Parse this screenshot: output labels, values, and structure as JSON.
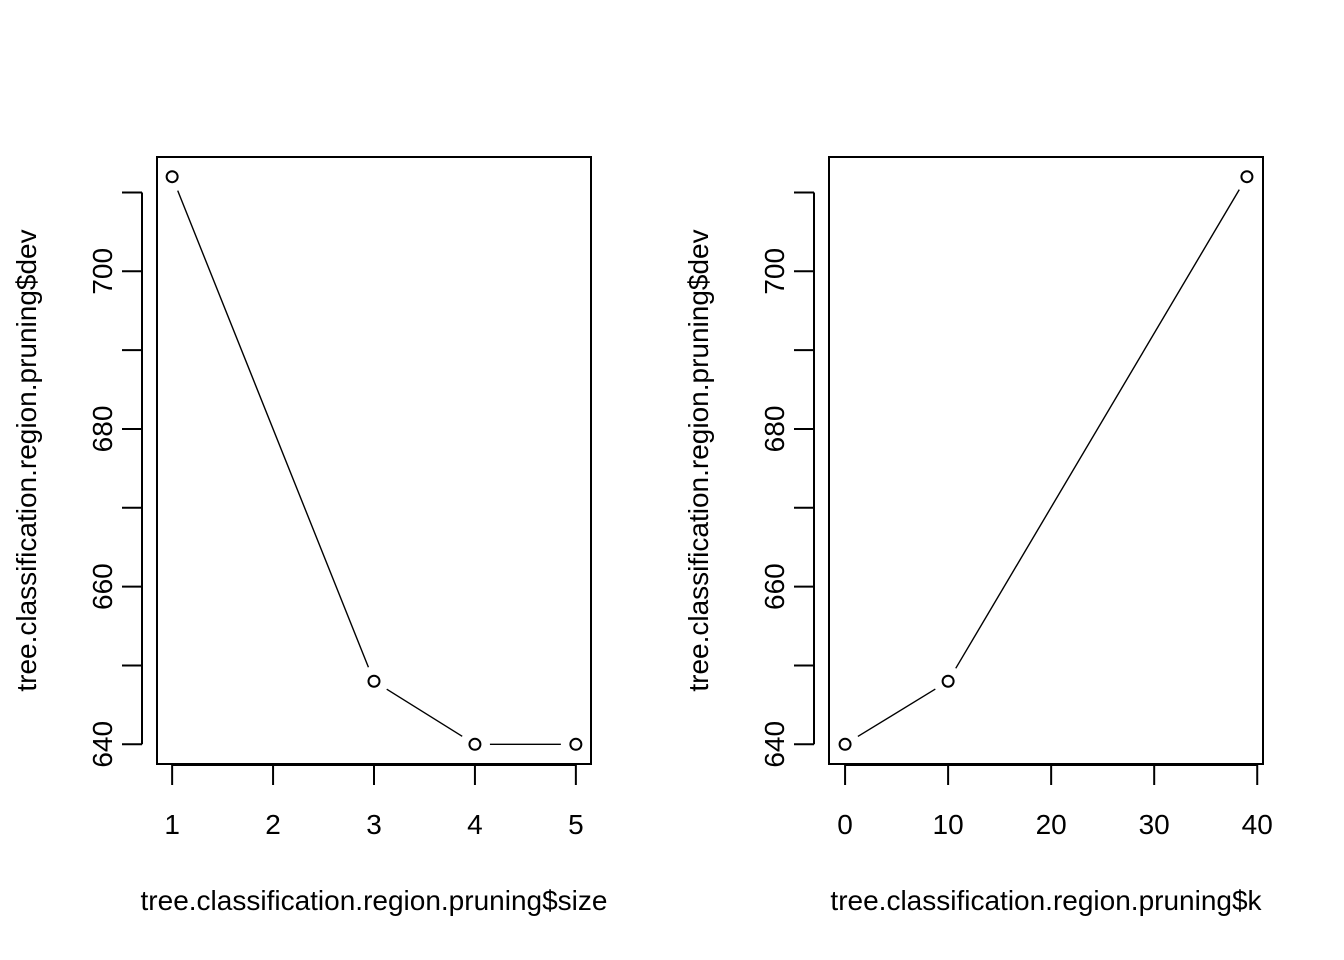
{
  "chart_data": [
    {
      "type": "line",
      "plot_type": "both (points and lines)",
      "x": [
        1,
        3,
        4,
        5
      ],
      "y": [
        712,
        648,
        640,
        640
      ],
      "xlabel": "tree.classification.region.pruning$size",
      "ylabel": "tree.classification.region.pruning$dev",
      "xlim": [
        0.85,
        5.15
      ],
      "ylim": [
        637.5,
        714.5
      ],
      "xticks": [
        1,
        2,
        3,
        4,
        5
      ],
      "yticks": [
        640,
        650,
        660,
        670,
        680,
        690,
        700,
        710
      ],
      "ytick_labels": [
        "640",
        "",
        "660",
        "",
        "680",
        "",
        "700",
        ""
      ],
      "grid": false,
      "legend": "none",
      "marker": "open circle",
      "color": "#000000"
    },
    {
      "type": "line",
      "plot_type": "both (points and lines)",
      "x": [
        0,
        10,
        39
      ],
      "y": [
        640,
        648,
        712
      ],
      "xlabel": "tree.classification.region.pruning$k",
      "ylabel": "tree.classification.region.pruning$dev",
      "xlim": [
        -1.56,
        40.56
      ],
      "ylim": [
        637.5,
        714.5
      ],
      "xticks": [
        0,
        10,
        20,
        30,
        40
      ],
      "yticks": [
        640,
        650,
        660,
        670,
        680,
        690,
        700,
        710
      ],
      "ytick_labels": [
        "640",
        "",
        "660",
        "",
        "680",
        "",
        "700",
        ""
      ],
      "grid": false,
      "legend": "none",
      "marker": "open circle",
      "color": "#000000"
    }
  ]
}
